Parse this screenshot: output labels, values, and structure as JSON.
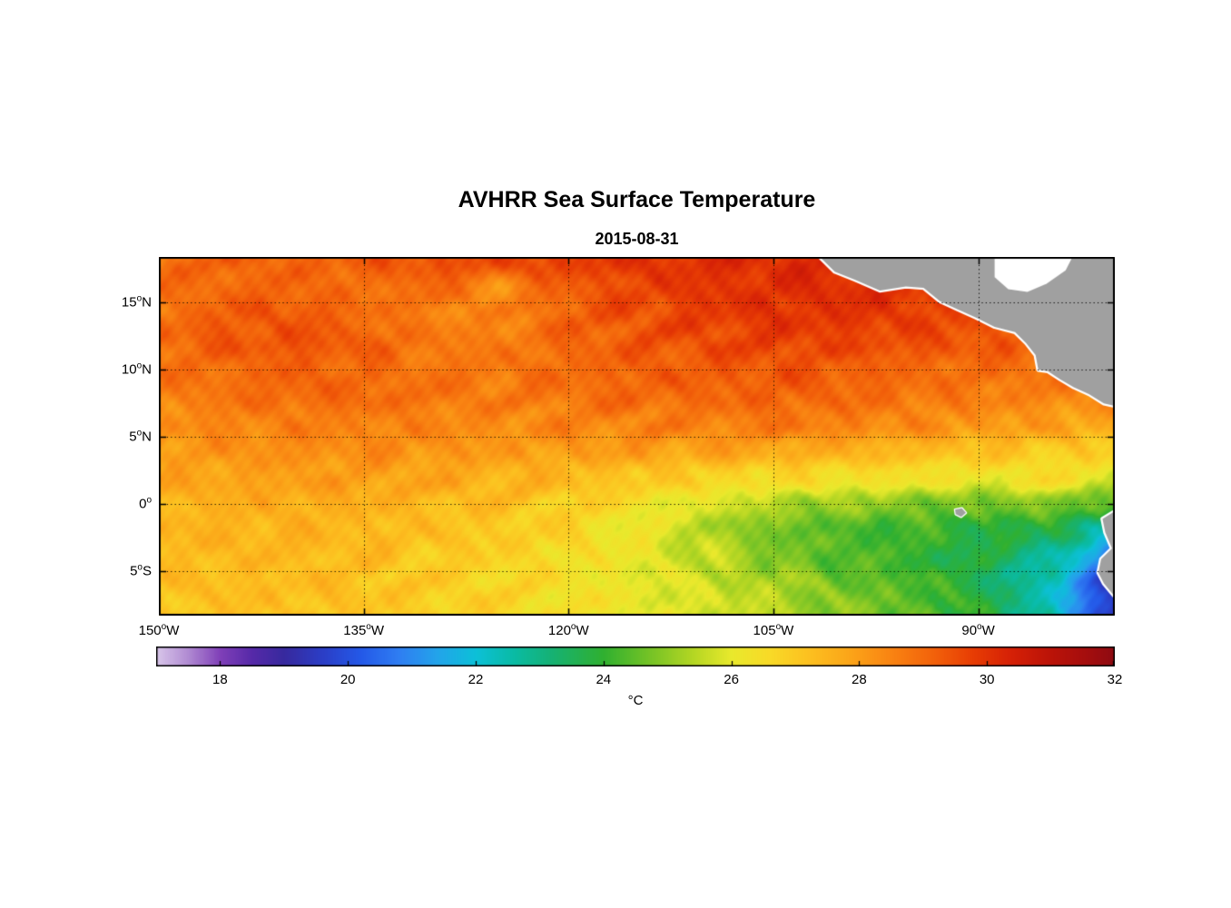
{
  "title": "AVHRR Sea Surface Temperature",
  "subtitle": "2015-08-31",
  "axes": {
    "x_ticks": [
      {
        "deg": "150",
        "sup": "o",
        "hemi": "W",
        "lon": -150
      },
      {
        "deg": "135",
        "sup": "o",
        "hemi": "W",
        "lon": -135
      },
      {
        "deg": "120",
        "sup": "o",
        "hemi": "W",
        "lon": -120
      },
      {
        "deg": "105",
        "sup": "o",
        "hemi": "W",
        "lon": -105
      },
      {
        "deg": "90",
        "sup": "o",
        "hemi": "W",
        "lon": -90
      }
    ],
    "y_ticks": [
      {
        "deg": "15",
        "sup": "o",
        "hemi": "N",
        "lat": 15
      },
      {
        "deg": "10",
        "sup": "o",
        "hemi": "N",
        "lat": 10
      },
      {
        "deg": "5",
        "sup": "o",
        "hemi": "N",
        "lat": 5
      },
      {
        "deg": "0",
        "sup": "o",
        "hemi": "",
        "lat": 0
      },
      {
        "deg": "5",
        "sup": "o",
        "hemi": "S",
        "lat": -5
      }
    ]
  },
  "colorbar": {
    "label": "°C",
    "min": 17,
    "max": 32,
    "ticks": [
      {
        "v": 18,
        "label": "18"
      },
      {
        "v": 20,
        "label": "20"
      },
      {
        "v": 22,
        "label": "22"
      },
      {
        "v": 24,
        "label": "24"
      },
      {
        "v": 26,
        "label": "26"
      },
      {
        "v": 28,
        "label": "28"
      },
      {
        "v": 30,
        "label": "30"
      },
      {
        "v": 32,
        "label": "32"
      }
    ],
    "stops": [
      [
        17.0,
        "#d9c7ea"
      ],
      [
        17.5,
        "#b08ad2"
      ],
      [
        18.0,
        "#8040b8"
      ],
      [
        18.5,
        "#5629a8"
      ],
      [
        19.0,
        "#37299e"
      ],
      [
        19.6,
        "#2b3ec6"
      ],
      [
        20.2,
        "#2459e8"
      ],
      [
        20.8,
        "#2f7ef2"
      ],
      [
        21.4,
        "#23a4ea"
      ],
      [
        22.0,
        "#0cc0d8"
      ],
      [
        22.6,
        "#0abba4"
      ],
      [
        23.2,
        "#16b173"
      ],
      [
        24.0,
        "#30b030"
      ],
      [
        24.7,
        "#73c226"
      ],
      [
        25.4,
        "#b4d623"
      ],
      [
        26.0,
        "#e9e92c"
      ],
      [
        26.6,
        "#f8da27"
      ],
      [
        27.2,
        "#fcc120"
      ],
      [
        27.9,
        "#fba318"
      ],
      [
        28.5,
        "#f98412"
      ],
      [
        29.2,
        "#f2600a"
      ],
      [
        29.8,
        "#e73c04"
      ],
      [
        30.4,
        "#d52006"
      ],
      [
        31.0,
        "#bb1308"
      ],
      [
        31.6,
        "#a30d0e"
      ],
      [
        32.0,
        "#8e0b12"
      ]
    ]
  },
  "chart_data": {
    "type": "heatmap",
    "title": "AVHRR Sea Surface Temperature",
    "date": "2015-08-31",
    "units": "°C",
    "lon_min": -150,
    "lon_max": -80,
    "lat_min": -8.3,
    "lat_max": 18.4,
    "land_color": "#a0a0a0",
    "grid_lons": [
      -150,
      -145,
      -140,
      -135,
      -130,
      -125,
      -120,
      -115,
      -110,
      -105,
      -100,
      -95,
      -90,
      -85,
      -80
    ],
    "grid_lats": [
      18,
      16,
      14,
      12,
      10,
      8,
      6,
      4,
      2,
      0,
      -2,
      -4,
      -6,
      -8
    ],
    "sst": [
      [
        29.0,
        29.2,
        29.1,
        29.3,
        29.5,
        29.6,
        29.8,
        30.0,
        30.1,
        30.2,
        30.2,
        30.1,
        30.0,
        30.0,
        30.0
      ],
      [
        28.8,
        29.0,
        29.1,
        28.8,
        29.0,
        28.3,
        29.2,
        29.6,
        29.9,
        30.0,
        30.1,
        30.0,
        29.9,
        29.8,
        29.8
      ],
      [
        28.9,
        29.3,
        29.4,
        29.0,
        28.6,
        28.5,
        29.2,
        29.5,
        29.8,
        30.0,
        30.0,
        29.8,
        29.6,
        29.5,
        29.5
      ],
      [
        29.0,
        29.3,
        29.4,
        29.2,
        28.7,
        28.6,
        29.0,
        29.3,
        29.5,
        29.7,
        29.6,
        29.5,
        29.3,
        29.2,
        29.2
      ],
      [
        28.8,
        29.0,
        29.2,
        29.0,
        28.8,
        28.8,
        29.0,
        29.2,
        29.3,
        29.4,
        29.3,
        29.0,
        29.0,
        28.8,
        28.8
      ],
      [
        28.5,
        28.8,
        29.0,
        29.0,
        28.8,
        28.6,
        28.8,
        29.0,
        29.0,
        29.1,
        29.0,
        28.8,
        28.6,
        28.5,
        28.3
      ],
      [
        28.3,
        28.5,
        28.6,
        28.6,
        28.5,
        28.4,
        28.5,
        28.6,
        28.6,
        28.8,
        28.6,
        28.4,
        28.2,
        28.0,
        27.8
      ],
      [
        28.0,
        28.2,
        28.3,
        28.3,
        28.2,
        28.0,
        28.0,
        28.0,
        27.9,
        27.8,
        27.6,
        27.4,
        27.2,
        27.0,
        26.8
      ],
      [
        27.8,
        27.9,
        28.0,
        28.0,
        27.8,
        27.6,
        27.4,
        27.1,
        26.8,
        26.6,
        26.5,
        26.4,
        26.2,
        26.5,
        26.0
      ],
      [
        27.5,
        27.6,
        27.7,
        27.6,
        27.4,
        27.2,
        26.9,
        26.4,
        25.9,
        25.4,
        25.1,
        24.9,
        24.6,
        25.0,
        24.2
      ],
      [
        27.5,
        27.5,
        27.5,
        27.4,
        27.2,
        27.0,
        26.7,
        26.1,
        25.4,
        24.7,
        24.3,
        24.1,
        23.9,
        23.6,
        22.6
      ],
      [
        27.3,
        27.4,
        27.4,
        27.3,
        27.0,
        26.8,
        26.5,
        26.1,
        25.6,
        24.9,
        24.4,
        24.1,
        23.6,
        22.9,
        20.6
      ],
      [
        27.2,
        27.3,
        27.3,
        27.2,
        26.9,
        26.7,
        26.4,
        26.0,
        25.7,
        25.3,
        24.7,
        24.3,
        23.7,
        22.2,
        19.6
      ],
      [
        27.1,
        27.2,
        27.2,
        27.1,
        26.9,
        26.7,
        26.4,
        26.1,
        25.8,
        25.5,
        24.9,
        24.6,
        23.9,
        22.6,
        19.2
      ]
    ],
    "land": [
      {
        "name": "central-america",
        "fill": "#a0a0a0",
        "stroke": "#ffffff",
        "points": [
          [
            -101.8,
            18.6
          ],
          [
            -100.5,
            17.3
          ],
          [
            -99.0,
            16.7
          ],
          [
            -97.2,
            15.9
          ],
          [
            -95.3,
            16.2
          ],
          [
            -94.0,
            16.1
          ],
          [
            -92.8,
            15.1
          ],
          [
            -91.5,
            14.5
          ],
          [
            -90.2,
            13.9
          ],
          [
            -88.8,
            13.2
          ],
          [
            -87.3,
            12.8
          ],
          [
            -86.5,
            12.0
          ],
          [
            -85.8,
            11.1
          ],
          [
            -85.6,
            10.0
          ],
          [
            -84.9,
            9.9
          ],
          [
            -84.0,
            9.3
          ],
          [
            -83.0,
            8.7
          ],
          [
            -81.9,
            8.2
          ],
          [
            -80.8,
            7.5
          ],
          [
            -79.0,
            7.1
          ],
          [
            -79.0,
            18.6
          ]
        ]
      },
      {
        "name": "caribbean-nodata",
        "fill": "#ffffff",
        "stroke": null,
        "points": [
          [
            -88.8,
            18.6
          ],
          [
            -83.0,
            18.6
          ],
          [
            -83.6,
            17.4
          ],
          [
            -85.0,
            16.4
          ],
          [
            -86.4,
            15.8
          ],
          [
            -87.8,
            16.0
          ],
          [
            -88.8,
            16.9
          ]
        ]
      },
      {
        "name": "south-america",
        "fill": "#a0a0a0",
        "stroke": "#ffffff",
        "points": [
          [
            -78.5,
            -0.3
          ],
          [
            -80.1,
            -0.6
          ],
          [
            -80.9,
            -1.1
          ],
          [
            -80.7,
            -2.1
          ],
          [
            -80.2,
            -3.3
          ],
          [
            -81.0,
            -4.1
          ],
          [
            -81.2,
            -5.1
          ],
          [
            -80.8,
            -5.9
          ],
          [
            -79.9,
            -7.0
          ],
          [
            -79.3,
            -8.5
          ],
          [
            -78.5,
            -8.5
          ]
        ]
      },
      {
        "name": "galapagos",
        "fill": "#a0a0a0",
        "stroke": "#ffffff",
        "points": [
          [
            -91.7,
            -0.4
          ],
          [
            -91.2,
            -0.3
          ],
          [
            -90.9,
            -0.65
          ],
          [
            -91.25,
            -0.95
          ],
          [
            -91.65,
            -0.75
          ]
        ]
      }
    ]
  }
}
